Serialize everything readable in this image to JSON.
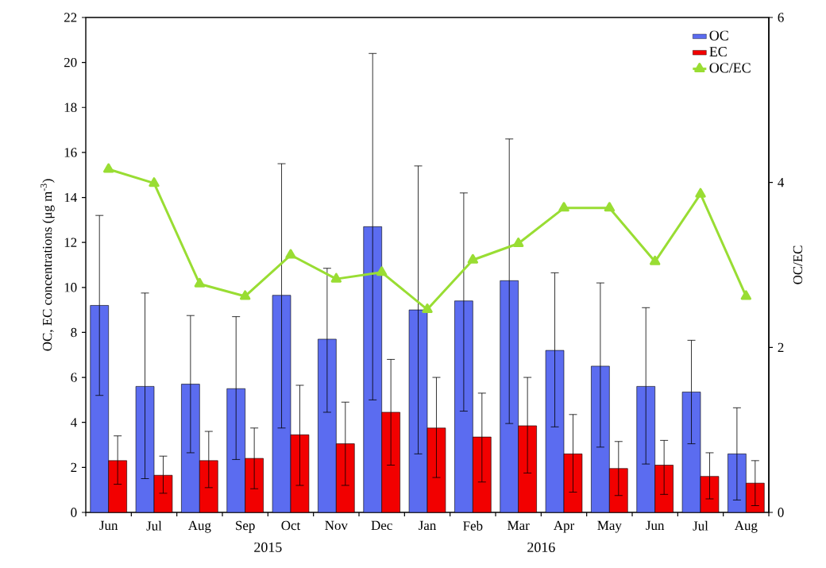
{
  "chart_data": {
    "type": "bar",
    "categories": [
      "Jun",
      "Jul",
      "Aug",
      "Sep",
      "Oct",
      "Nov",
      "Dec",
      "Jan",
      "Feb",
      "Mar",
      "Apr",
      "May",
      "Jun",
      "Jul",
      "Aug"
    ],
    "ylabel": "OC, EC concentrations (μg m$^{-3}$)",
    "y2label": "OC/EC",
    "ylim": [
      0,
      22
    ],
    "yticks": [
      0,
      2,
      4,
      6,
      8,
      10,
      12,
      14,
      16,
      18,
      20,
      22
    ],
    "y2lim": [
      0,
      6
    ],
    "y2ticks": [
      0,
      2,
      4,
      6
    ],
    "annotations": [
      "2015",
      "2016"
    ],
    "legend": "top right",
    "marker": "triangle",
    "line_style": "solid",
    "grid": false,
    "series": [
      {
        "name": "OC",
        "color": "#5b6cf0",
        "values": [
          9.2,
          5.6,
          5.7,
          5.5,
          9.65,
          7.7,
          12.7,
          9.0,
          9.4,
          10.3,
          7.2,
          6.5,
          5.6,
          5.35,
          2.6
        ],
        "errors": [
          [
            5.2,
            13.2
          ],
          [
            1.5,
            9.75
          ],
          [
            2.65,
            8.75
          ],
          [
            2.35,
            8.7
          ],
          [
            3.75,
            15.5
          ],
          [
            4.45,
            10.85
          ],
          [
            5.0,
            20.4
          ],
          [
            2.6,
            15.4
          ],
          [
            4.5,
            14.2
          ],
          [
            3.95,
            16.6
          ],
          [
            3.8,
            10.65
          ],
          [
            2.9,
            10.2
          ],
          [
            2.15,
            9.1
          ],
          [
            3.05,
            7.65
          ],
          [
            0.55,
            4.65
          ]
        ]
      },
      {
        "name": "EC",
        "color": "#f20000",
        "values": [
          2.3,
          1.65,
          2.3,
          2.4,
          3.45,
          3.05,
          4.45,
          3.75,
          3.35,
          3.85,
          2.6,
          1.95,
          2.1,
          1.6,
          1.3
        ],
        "errors": [
          [
            1.25,
            3.4
          ],
          [
            0.85,
            2.5
          ],
          [
            1.1,
            3.6
          ],
          [
            1.05,
            3.75
          ],
          [
            1.2,
            5.65
          ],
          [
            1.2,
            4.9
          ],
          [
            2.1,
            6.8
          ],
          [
            1.55,
            6.0
          ],
          [
            1.35,
            5.3
          ],
          [
            1.75,
            6.0
          ],
          [
            0.9,
            4.35
          ],
          [
            0.75,
            3.15
          ],
          [
            0.8,
            3.2
          ],
          [
            0.6,
            2.65
          ],
          [
            0.3,
            2.3
          ]
        ]
      },
      {
        "name": "OC/EC",
        "type": "line",
        "axis": "y2",
        "color": "#99dd33",
        "values": [
          4.16,
          3.99,
          2.77,
          2.62,
          3.12,
          2.83,
          2.91,
          2.46,
          3.06,
          3.26,
          3.69,
          3.69,
          3.04,
          3.86,
          2.62
        ]
      }
    ]
  }
}
